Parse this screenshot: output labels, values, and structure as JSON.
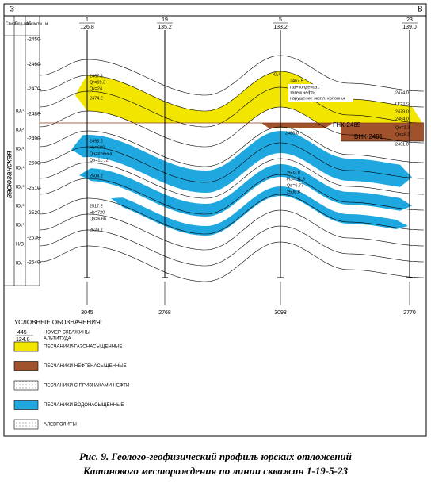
{
  "header": {
    "left": "З",
    "right": "В",
    "col_suite": "Сви-та",
    "col_subsuite": "Под-сви-та",
    "col_depth": "Абс. отм., м",
    "suite_name": "васюганская"
  },
  "wells": [
    {
      "number": "1",
      "altitude": "126.8",
      "bottom": "3045"
    },
    {
      "number": "19",
      "altitude": "135.2",
      "bottom": "2768"
    },
    {
      "number": "5",
      "altitude": "133.2",
      "bottom": "3098"
    },
    {
      "number": "23",
      "altitude": "139.0",
      "bottom": "2770"
    }
  ],
  "depth_scale": [
    "-2450",
    "-2460",
    "-2470",
    "-2480",
    "-2490",
    "-2500",
    "-2510",
    "-2520",
    "-2530",
    "-2540"
  ],
  "subsuites": [
    "Ю₁¹",
    "Ю₁²",
    "Ю₁³",
    "Ю₁⁴",
    "Ю₁⁵",
    "Ю₁⁶",
    "Ю₁⁷",
    "Н/В",
    "Ю₂"
  ],
  "contacts": {
    "gas_oil": "ГНК-2485",
    "oil_water": "ВНК-2491"
  },
  "annotations": {
    "well_1": [
      "2467.2",
      "Qг=99.3",
      "Qк=24",
      "2474.2",
      "2493.2",
      "Hэ=686",
      "Qн=пленка",
      "Qв=11.12",
      "2504.2",
      "2517.2",
      "Hэ=720",
      "Qв=6.66",
      "2529.7"
    ],
    "well_5": [
      "Ю₁¹",
      "2467.5",
      "газ+конденсат,",
      "затем нефть,",
      "нарушение экспл. колонны",
      "2486.0",
      "2503.8",
      "Hэ=111.3",
      "Qв=6.77",
      "2508.8"
    ],
    "well_23": [
      "2474.0",
      "Qг=122",
      "2479.0",
      "2484.0",
      "Qн=2.3",
      "Qв=6.2",
      "2491.0"
    ]
  },
  "legend": {
    "title": "УСЛОВНЫЕ ОБОЗНАЧЕНИЯ:",
    "sample_number": "445",
    "sample_altitude": "124.8",
    "sample_text_1": "НОМЕР СКВАЖИНЫ",
    "sample_text_2": "АЛЬТИТУДА",
    "items": [
      "ПЕСЧАНИКИ-ГАЗОНАСЫЩЕННЫЕ",
      "ПЕСЧАНИКИ-НЕФТЕНАСЫЩЕННЫЕ",
      "ПЕСЧАНИКИ С ПРИЗНАКАМИ НЕФТИ",
      "ПЕСЧАНИКИ-ВОДОНАСЫЩЕННЫЕ",
      "АЛЕВРОЛИТЫ"
    ]
  },
  "caption": [
    "Рис. 9. Геолого-геофизический профиль юрских отложений",
    "Катинового месторождения по линии скважин 1-19-5-23"
  ]
}
